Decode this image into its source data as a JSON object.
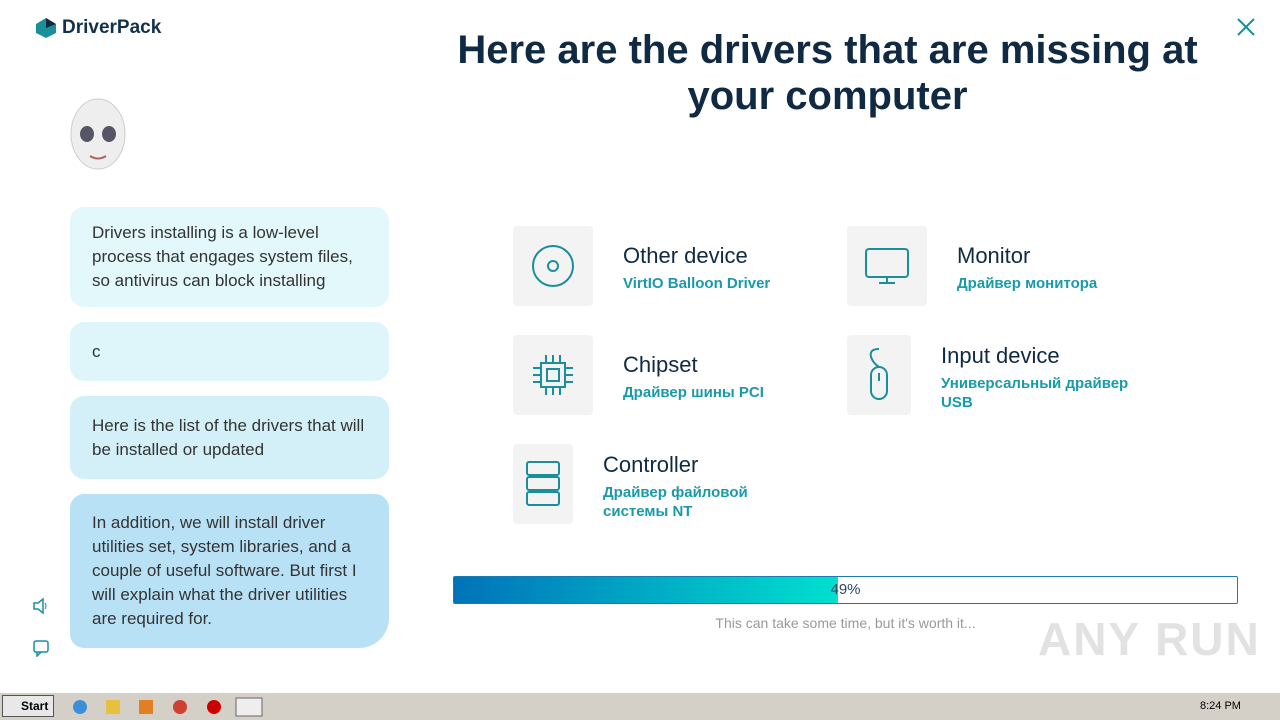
{
  "app": {
    "logo": "DriverPack"
  },
  "header": {
    "title": "Here are the drivers that are missing at your computer"
  },
  "chat": {
    "messages": [
      "Drivers installing is a low-level process that engages system files, so antivirus can block installing",
      "c",
      "Here is the list of the drivers that will be installed or updated",
      "In addition, we will install driver utilities set, system libraries, and a couple of useful software. But first I will explain what the driver utilities are required for."
    ]
  },
  "devices": [
    {
      "name": "Other device",
      "driver": "VirtIO Balloon Driver"
    },
    {
      "name": "Monitor",
      "driver": "Драйвер монитора"
    },
    {
      "name": "Chipset",
      "driver": "Драйвер шины PCI"
    },
    {
      "name": "Input device",
      "driver": "Универсальный драйвер USB"
    },
    {
      "name": "Controller",
      "driver": "Драйвер файловой системы NT"
    }
  ],
  "progress": {
    "value": 49,
    "label": "49%",
    "note": "This can take some time, but it's worth it..."
  },
  "watermark": "ANY RUN",
  "taskbar": {
    "start": "Start",
    "clock": "8:24 PM"
  }
}
